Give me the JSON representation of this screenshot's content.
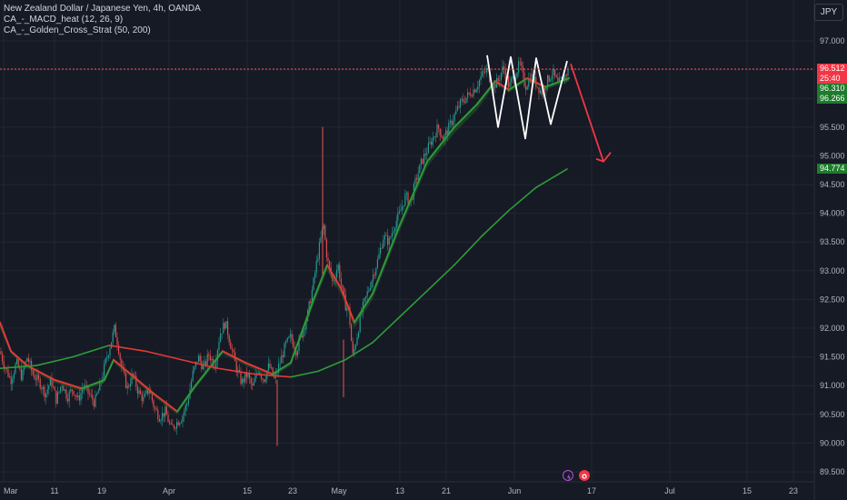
{
  "legend": {
    "title": "New Zealand Dollar / Japanese Yen, 4h, OANDA",
    "line2": "CA_-_MACD_heat (12, 26, 9)",
    "line3": "CA_-_Golden_Cross_Strat (50, 200)"
  },
  "currency_button": "JPY",
  "price_tags": {
    "last": "96.512",
    "countdown": "25:40",
    "ema_fast": "96.310",
    "ema_slow": "96.266",
    "ma200": "94.774"
  },
  "colors": {
    "background": "#161a25",
    "grid": "#232734",
    "up_candle": "#26a69a",
    "down_candle": "#ef5350",
    "ema_red": "#e53935",
    "ema_green": "#2e9c38",
    "arrow": "#f23645",
    "pattern": "#ffffff"
  },
  "icons": [
    "lightning-icon",
    "record-icon"
  ],
  "chart_data": {
    "type": "candlestick",
    "title": "New Zealand Dollar / Japanese Yen, 4h, OANDA",
    "y_ticks": [
      "97.000",
      "96.500",
      "96.000",
      "95.500",
      "95.000",
      "94.500",
      "94.000",
      "93.500",
      "93.000",
      "92.500",
      "92.000",
      "91.500",
      "91.000",
      "90.500",
      "90.000",
      "89.500"
    ],
    "ylim": [
      89.35,
      97.3
    ],
    "x_ticks": [
      "Mar",
      "11",
      "19",
      "Apr",
      "15",
      "23",
      "May",
      "13",
      "21",
      "Jun",
      "17",
      "Jul",
      "15",
      "23"
    ],
    "grid": true,
    "series": [
      {
        "name": "price_path",
        "values": [
          [
            0,
            91.6
          ],
          [
            6,
            91.3
          ],
          [
            12,
            91.1
          ],
          [
            18,
            91.4
          ],
          [
            24,
            91.15
          ],
          [
            30,
            91.5
          ],
          [
            36,
            91.2
          ],
          [
            44,
            91.05
          ],
          [
            50,
            90.85
          ],
          [
            56,
            91.1
          ],
          [
            62,
            90.75
          ],
          [
            68,
            91.05
          ],
          [
            74,
            90.8
          ],
          [
            80,
            90.95
          ],
          [
            86,
            90.75
          ],
          [
            92,
            91.0
          ],
          [
            98,
            90.85
          ],
          [
            104,
            90.7
          ],
          [
            110,
            91.0
          ],
          [
            116,
            91.4
          ],
          [
            122,
            91.75
          ],
          [
            126,
            92.0
          ],
          [
            130,
            91.7
          ],
          [
            134,
            91.3
          ],
          [
            140,
            90.95
          ],
          [
            146,
            91.2
          ],
          [
            152,
            90.9
          ],
          [
            158,
            90.75
          ],
          [
            164,
            90.95
          ],
          [
            170,
            90.6
          ],
          [
            176,
            90.45
          ],
          [
            182,
            90.55
          ],
          [
            188,
            90.25
          ],
          [
            194,
            90.35
          ],
          [
            200,
            90.45
          ],
          [
            206,
            90.7
          ],
          [
            212,
            91.2
          ],
          [
            218,
            91.5
          ],
          [
            224,
            91.3
          ],
          [
            230,
            91.55
          ],
          [
            236,
            91.35
          ],
          [
            242,
            91.9
          ],
          [
            248,
            92.1
          ],
          [
            254,
            91.7
          ],
          [
            260,
            91.3
          ],
          [
            266,
            91.05
          ],
          [
            272,
            91.2
          ],
          [
            278,
            90.95
          ],
          [
            284,
            91.3
          ],
          [
            290,
            91.1
          ],
          [
            296,
            91.35
          ],
          [
            302,
            91.1
          ],
          [
            308,
            91.4
          ],
          [
            314,
            91.7
          ],
          [
            320,
            91.85
          ],
          [
            326,
            91.6
          ],
          [
            332,
            91.9
          ],
          [
            338,
            92.2
          ],
          [
            344,
            92.7
          ],
          [
            350,
            93.3
          ],
          [
            356,
            93.8
          ],
          [
            360,
            93.2
          ],
          [
            366,
            92.8
          ],
          [
            372,
            93.1
          ],
          [
            376,
            92.7
          ],
          [
            380,
            92.4
          ],
          [
            384,
            92.3
          ],
          [
            388,
            91.5
          ],
          [
            392,
            91.8
          ],
          [
            398,
            92.3
          ],
          [
            404,
            92.6
          ],
          [
            410,
            92.9
          ],
          [
            416,
            93.2
          ],
          [
            422,
            93.6
          ],
          [
            428,
            93.5
          ],
          [
            434,
            93.8
          ],
          [
            440,
            94.0
          ],
          [
            446,
            94.3
          ],
          [
            452,
            94.2
          ],
          [
            458,
            94.6
          ],
          [
            464,
            94.9
          ],
          [
            470,
            95.1
          ],
          [
            476,
            95.3
          ],
          [
            482,
            95.5
          ],
          [
            488,
            95.3
          ],
          [
            494,
            95.5
          ],
          [
            500,
            95.7
          ],
          [
            506,
            95.9
          ],
          [
            512,
            96.0
          ],
          [
            518,
            96.1
          ],
          [
            524,
            96.2
          ],
          [
            530,
            96.4
          ],
          [
            536,
            96.5
          ],
          [
            542,
            96.2
          ],
          [
            548,
            96.3
          ],
          [
            554,
            96.55
          ],
          [
            560,
            96.2
          ],
          [
            566,
            96.4
          ],
          [
            572,
            96.6
          ],
          [
            578,
            96.2
          ],
          [
            584,
            96.4
          ],
          [
            590,
            96.25
          ],
          [
            596,
            96.1
          ],
          [
            602,
            96.3
          ],
          [
            608,
            96.45
          ],
          [
            614,
            96.25
          ],
          [
            620,
            96.35
          ],
          [
            626,
            96.5
          ]
        ]
      },
      {
        "name": "ema_fast",
        "values": [
          [
            0,
            92.1
          ],
          [
            12,
            91.6
          ],
          [
            30,
            91.35
          ],
          [
            60,
            91.1
          ],
          [
            90,
            90.95
          ],
          [
            115,
            91.1
          ],
          [
            125,
            91.45
          ],
          [
            140,
            91.25
          ],
          [
            170,
            90.85
          ],
          [
            195,
            90.55
          ],
          [
            215,
            91.0
          ],
          [
            245,
            91.6
          ],
          [
            270,
            91.4
          ],
          [
            300,
            91.2
          ],
          [
            320,
            91.4
          ],
          [
            345,
            92.5
          ],
          [
            360,
            93.1
          ],
          [
            375,
            92.7
          ],
          [
            390,
            92.1
          ],
          [
            410,
            92.6
          ],
          [
            440,
            93.8
          ],
          [
            470,
            94.9
          ],
          [
            500,
            95.5
          ],
          [
            525,
            95.9
          ],
          [
            545,
            96.3
          ],
          [
            560,
            96.15
          ],
          [
            580,
            96.35
          ],
          [
            600,
            96.2
          ],
          [
            626,
            96.35
          ]
        ]
      },
      {
        "name": "ema_slow",
        "values": [
          [
            0,
            92.0
          ],
          [
            12,
            91.55
          ],
          [
            30,
            91.3
          ],
          [
            60,
            91.05
          ],
          [
            90,
            90.9
          ],
          [
            115,
            91.05
          ],
          [
            125,
            91.4
          ],
          [
            140,
            91.2
          ],
          [
            170,
            90.8
          ],
          [
            195,
            90.5
          ],
          [
            215,
            90.95
          ],
          [
            245,
            91.55
          ],
          [
            270,
            91.35
          ],
          [
            300,
            91.15
          ],
          [
            320,
            91.35
          ],
          [
            345,
            92.4
          ],
          [
            360,
            93.0
          ],
          [
            375,
            92.6
          ],
          [
            390,
            92.0
          ],
          [
            410,
            92.5
          ],
          [
            440,
            93.7
          ],
          [
            470,
            94.8
          ],
          [
            500,
            95.4
          ],
          [
            525,
            95.8
          ],
          [
            545,
            96.25
          ],
          [
            560,
            96.1
          ],
          [
            580,
            96.3
          ],
          [
            600,
            96.15
          ],
          [
            626,
            96.3
          ]
        ]
      },
      {
        "name": "ma200",
        "values": [
          [
            0,
            91.3
          ],
          [
            40,
            91.35
          ],
          [
            80,
            91.5
          ],
          [
            120,
            91.7
          ],
          [
            160,
            91.6
          ],
          [
            200,
            91.45
          ],
          [
            240,
            91.3
          ],
          [
            280,
            91.2
          ],
          [
            320,
            91.15
          ],
          [
            350,
            91.25
          ],
          [
            380,
            91.45
          ],
          [
            410,
            91.75
          ],
          [
            440,
            92.2
          ],
          [
            470,
            92.65
          ],
          [
            500,
            93.1
          ],
          [
            530,
            93.6
          ],
          [
            560,
            94.05
          ],
          [
            590,
            94.45
          ],
          [
            624,
            94.77
          ]
        ]
      },
      {
        "name": "zigzag",
        "values": [
          [
            536,
            96.75
          ],
          [
            548,
            95.5
          ],
          [
            562,
            96.72
          ],
          [
            578,
            95.3
          ],
          [
            590,
            96.7
          ],
          [
            606,
            95.55
          ],
          [
            624,
            96.65
          ]
        ]
      },
      {
        "name": "arrow",
        "values": [
          [
            628,
            96.6
          ],
          [
            664,
            94.9
          ]
        ]
      }
    ],
    "spikes": [
      {
        "x": 355,
        "low": 92.9,
        "high": 95.5
      },
      {
        "x": 305,
        "low": 89.95,
        "high": 91.1
      },
      {
        "x": 378,
        "low": 90.8,
        "high": 91.8
      }
    ]
  }
}
